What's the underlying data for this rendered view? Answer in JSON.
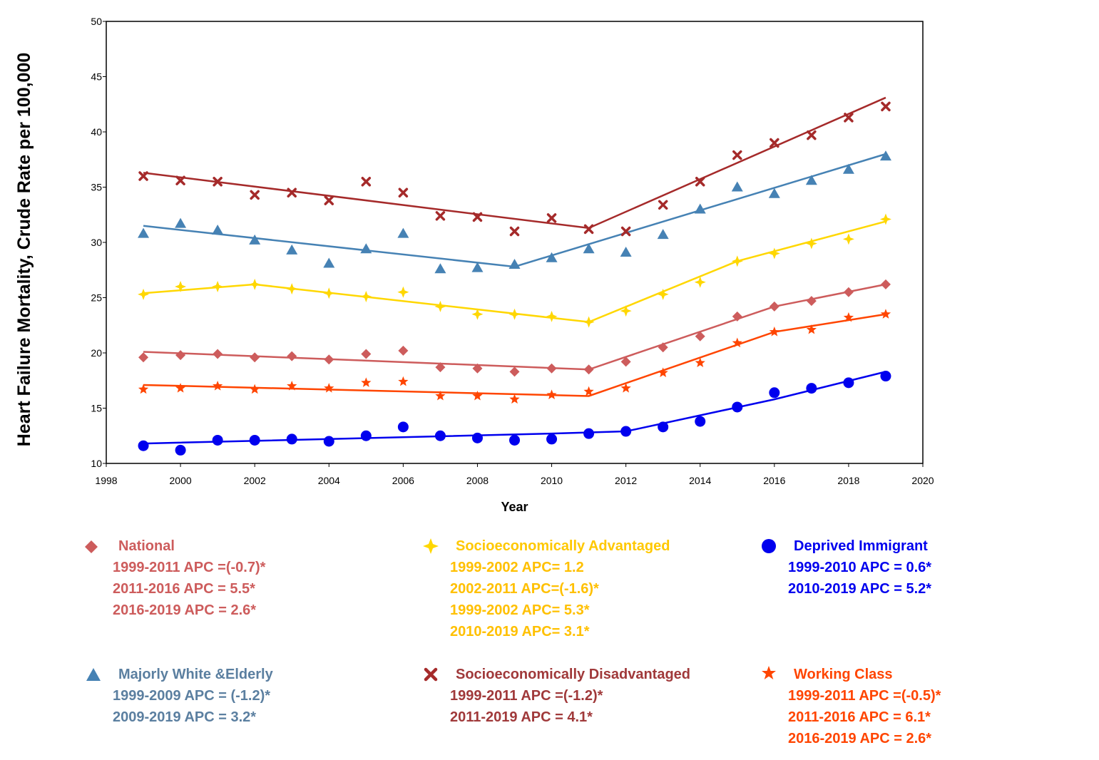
{
  "chart_data": {
    "type": "scatter",
    "title": "",
    "xlabel": "Year",
    "ylabel": "Heart Failure Mortality, Crude Rate per 100,000",
    "xlim": [
      1998,
      2020
    ],
    "ylim": [
      10,
      50
    ],
    "xticks": [
      1998,
      2000,
      2002,
      2004,
      2006,
      2008,
      2010,
      2012,
      2014,
      2016,
      2018,
      2020
    ],
    "yticks": [
      10,
      15,
      20,
      25,
      30,
      35,
      40,
      45,
      50
    ],
    "grid": false,
    "x": [
      1999,
      2000,
      2001,
      2002,
      2003,
      2004,
      2005,
      2006,
      2007,
      2008,
      2009,
      2010,
      2011,
      2012,
      2013,
      2014,
      2015,
      2016,
      2017,
      2018,
      2019
    ],
    "series": [
      {
        "name": "Socioeconomically Disadvantaged",
        "color": "#A52A2A",
        "marker": "x",
        "values": [
          36.0,
          35.6,
          35.5,
          34.3,
          34.5,
          33.8,
          35.5,
          34.5,
          32.4,
          32.3,
          31.0,
          32.2,
          31.2,
          31.0,
          33.4,
          35.5,
          37.9,
          39.0,
          39.7,
          41.3,
          42.3
        ],
        "fit": [
          [
            1999,
            36.3
          ],
          [
            2011,
            31.3
          ],
          [
            2019,
            43.1
          ]
        ],
        "apc": [
          "1999-2011 APC =(-1.2)*",
          "2011-2019 APC = 4.1*"
        ]
      },
      {
        "name": "Majorly White &Elderly",
        "color": "#4682B4",
        "marker": "triangle",
        "values": [
          30.8,
          31.7,
          31.1,
          30.2,
          29.3,
          28.1,
          29.4,
          30.8,
          27.6,
          27.7,
          28.0,
          28.6,
          29.4,
          29.1,
          30.7,
          33.0,
          35.0,
          34.4,
          35.6,
          36.6,
          37.8
        ],
        "fit": [
          [
            1999,
            31.5
          ],
          [
            2009,
            27.8
          ],
          [
            2019,
            38.0
          ]
        ],
        "apc": [
          "1999-2009 APC = (-1.2)*",
          "2009-2019 APC = 3.2*"
        ]
      },
      {
        "name": "Socioeconomically Advantaged",
        "color": "#FFD700",
        "marker": "star4",
        "values": [
          25.3,
          26.0,
          26.0,
          26.2,
          25.8,
          25.4,
          25.1,
          25.5,
          24.2,
          23.5,
          23.5,
          23.3,
          22.8,
          23.8,
          25.3,
          26.4,
          28.3,
          29.0,
          29.9,
          30.3,
          32.1
        ],
        "fit": [
          [
            1999,
            25.4
          ],
          [
            2002,
            26.2
          ],
          [
            2011,
            22.8
          ],
          [
            2015,
            28.3
          ],
          [
            2019,
            31.9
          ]
        ],
        "apc": [
          "1999-2002 APC= 1.2",
          "2002-2011 APC=(-1.6)*",
          "1999-2002 APC= 5.3*",
          "2010-2019 APC= 3.1*"
        ]
      },
      {
        "name": "National",
        "color": "#CD5C5C",
        "marker": "diamond",
        "values": [
          19.6,
          19.8,
          19.9,
          19.6,
          19.7,
          19.4,
          19.9,
          20.2,
          18.7,
          18.6,
          18.3,
          18.6,
          18.5,
          19.2,
          20.5,
          21.5,
          23.3,
          24.2,
          24.7,
          25.5,
          26.2
        ],
        "fit": [
          [
            1999,
            20.1
          ],
          [
            2011,
            18.5
          ],
          [
            2016,
            24.2
          ],
          [
            2019,
            26.2
          ]
        ],
        "apc": [
          "1999-2011 APC =(-0.7)*",
          "2011-2016 APC = 5.5*",
          "2016-2019 APC = 2.6*"
        ]
      },
      {
        "name": "Working Class",
        "color": "#FF4500",
        "marker": "star5",
        "values": [
          16.7,
          16.8,
          17.0,
          16.7,
          17.0,
          16.8,
          17.3,
          17.4,
          16.1,
          16.1,
          15.8,
          16.2,
          16.5,
          16.8,
          18.2,
          19.1,
          20.9,
          21.9,
          22.1,
          23.2,
          23.5
        ],
        "fit": [
          [
            1999,
            17.1
          ],
          [
            2011,
            16.1
          ],
          [
            2016,
            21.9
          ],
          [
            2019,
            23.5
          ]
        ],
        "apc": [
          "1999-2011 APC =(-0.5)*",
          "2011-2016 APC = 6.1*",
          "2016-2019 APC = 2.6*"
        ]
      },
      {
        "name": "Deprived Immigrant",
        "color": "#0000EE",
        "marker": "circle",
        "values": [
          11.6,
          11.2,
          12.1,
          12.1,
          12.2,
          12.0,
          12.5,
          13.3,
          12.5,
          12.3,
          12.1,
          12.2,
          12.7,
          12.9,
          13.3,
          13.8,
          15.1,
          16.4,
          16.8,
          17.3,
          17.9
        ],
        "fit": [
          [
            1999,
            11.8
          ],
          [
            2010,
            12.7
          ],
          [
            2012,
            12.9
          ],
          [
            2016,
            15.8
          ],
          [
            2019,
            18.3
          ]
        ],
        "apc": [
          "1999-2010 APC = 0.6*",
          "2010-2019 APC = 5.2*"
        ]
      }
    ]
  }
}
